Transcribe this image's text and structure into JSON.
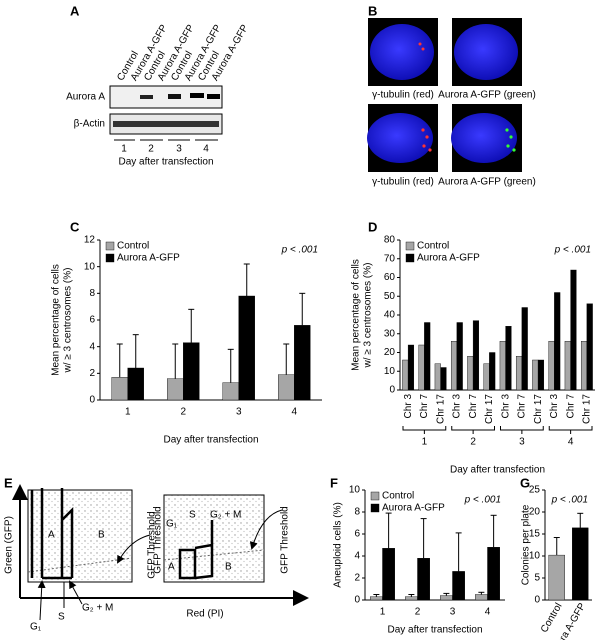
{
  "panel_labels": [
    "A",
    "B",
    "C",
    "D",
    "E",
    "F",
    "G"
  ],
  "blot": {
    "lane_labels": [
      "Control",
      "Aurora A-GFP",
      "Control",
      "Aurora A-GFP",
      "Control",
      "Aurora A-GFP",
      "Control",
      "Aurora A-GFP"
    ],
    "rows": [
      "Aurora A",
      "β-Actin"
    ],
    "days": [
      "1",
      "2",
      "3",
      "4"
    ],
    "xlabel": "Day after transfection"
  },
  "micrographs": {
    "captions": [
      "γ-tubulin (red)",
      "Aurora A-GFP (green)",
      "γ-tubulin (red)",
      "Aurora A-GFP (green)"
    ]
  },
  "flow": {
    "y_label": "Green (GFP)",
    "x_label": "Red (PI)",
    "left": {
      "regions": [
        "A",
        "B"
      ],
      "gates": [
        "G₁",
        "S",
        "G₂ + M"
      ],
      "threshold": "GFP Threshold"
    },
    "right": {
      "regions": [
        "A",
        "B"
      ],
      "gates": [
        "G₁",
        "S",
        "G₂ + M"
      ],
      "threshold": "GFP Threshold"
    }
  },
  "chart_data": [
    {
      "type": "bar",
      "ylabel": [
        "Mean percentage of cells",
        "w/ ≥ 3 centrosomes (%)"
      ],
      "xlabel": "Day after transfection",
      "annotation": "p < .001",
      "legend": "top-left",
      "categories": [
        "1",
        "2",
        "3",
        "4"
      ],
      "ylim": [
        0,
        12
      ],
      "yticks": [
        0,
        2,
        4,
        6,
        8,
        10,
        12
      ],
      "series": [
        {
          "name": "Control",
          "color": "#a6a6a6",
          "values": [
            1.7,
            1.6,
            1.3,
            1.9
          ],
          "errors": [
            2.5,
            2.6,
            2.5,
            2.3
          ]
        },
        {
          "name": "Aurora A-GFP",
          "color": "#000000",
          "values": [
            2.4,
            4.3,
            7.8,
            5.6
          ],
          "errors": [
            2.5,
            2.5,
            2.4,
            2.4
          ]
        }
      ]
    },
    {
      "type": "bar",
      "ylabel": [
        "Mean percentage of cells",
        "w/ ≥ 3 centrosomes (%)"
      ],
      "xlabel": "Day after transfection",
      "annotation": "p < .001",
      "legend": "top-left",
      "categories": [
        "Chr 3",
        "Chr 7",
        "Chr 17",
        "Chr 3",
        "Chr 7",
        "Chr 17",
        "Chr 3",
        "Chr 7",
        "Chr 17",
        "Chr 3",
        "Chr 7",
        "Chr 17"
      ],
      "groups": [
        "1",
        "2",
        "3",
        "4"
      ],
      "ylim": [
        0,
        80
      ],
      "yticks": [
        0,
        10,
        20,
        30,
        40,
        50,
        60,
        70,
        80
      ],
      "series": [
        {
          "name": "Control",
          "color": "#a6a6a6",
          "values": [
            16,
            24,
            14,
            26,
            18,
            14,
            26,
            18,
            16,
            26,
            26,
            26
          ]
        },
        {
          "name": "Aurora A-GFP",
          "color": "#000000",
          "values": [
            24,
            36,
            12,
            36,
            37,
            20,
            34,
            44,
            16,
            52,
            64,
            46
          ]
        }
      ]
    },
    {
      "type": "bar",
      "ylabel": [
        "Aneuploid cells (%)"
      ],
      "xlabel": "Day after transfection",
      "annotation": "p < .001",
      "legend": "top-left",
      "categories": [
        "1",
        "2",
        "3",
        "4"
      ],
      "ylim": [
        0,
        10
      ],
      "yticks": [
        0,
        2,
        4,
        6,
        8,
        10
      ],
      "series": [
        {
          "name": "Control",
          "color": "#a6a6a6",
          "values": [
            0.3,
            0.3,
            0.4,
            0.5
          ],
          "errors": [
            0.2,
            0.2,
            0.2,
            0.2
          ]
        },
        {
          "name": "Aurora A-GFP",
          "color": "#000000",
          "values": [
            4.7,
            3.8,
            2.6,
            4.8
          ],
          "errors": [
            3.2,
            3.6,
            3.5,
            2.9
          ]
        }
      ]
    },
    {
      "type": "bar",
      "ylabel": [
        "Colonies per plate"
      ],
      "annotation": "p < .001",
      "categories": [
        "Control",
        "Aurora A-GFP"
      ],
      "ylim": [
        0,
        25
      ],
      "yticks": [
        0,
        5,
        10,
        15,
        20,
        25
      ],
      "values": [
        10.2,
        16.4
      ],
      "errors": [
        4.0,
        3.3
      ],
      "colors": [
        "#a6a6a6",
        "#000000"
      ]
    }
  ]
}
